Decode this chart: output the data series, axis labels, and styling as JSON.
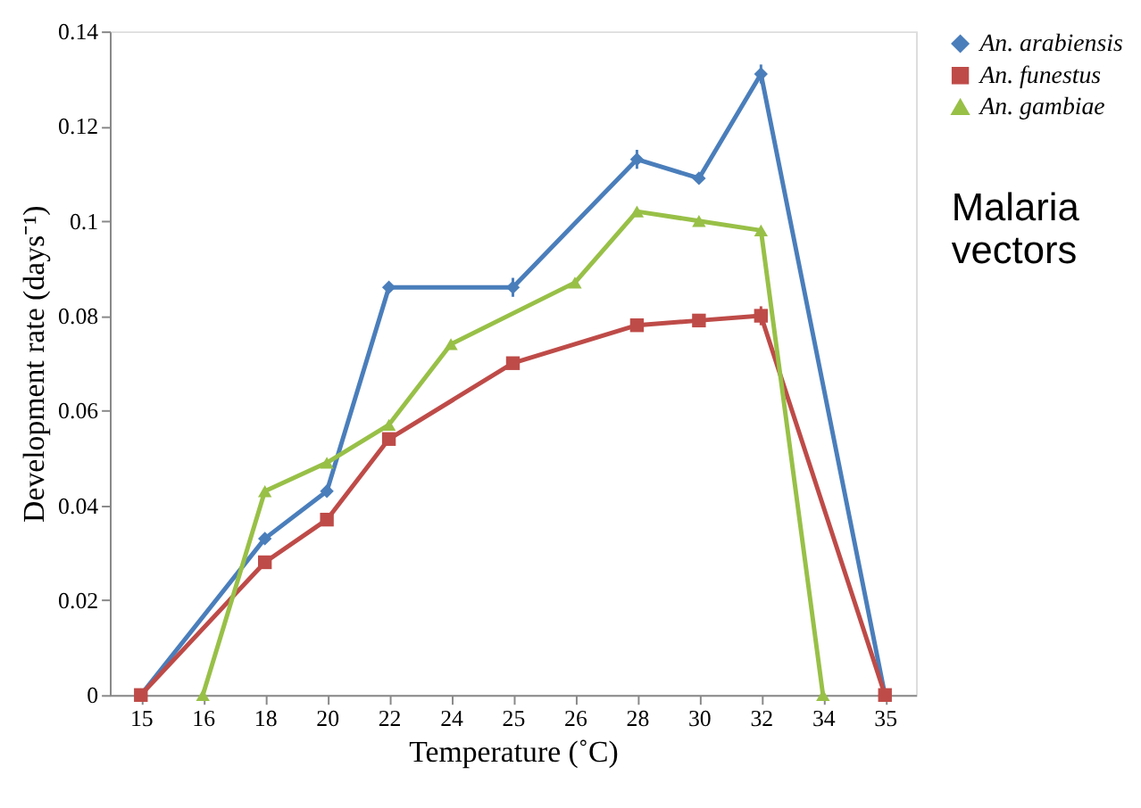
{
  "chart_data": {
    "type": "line",
    "xlabel": "Temperature (˚C)",
    "ylabel": "Development rate (days⁻¹)",
    "categories": [
      "15",
      "16",
      "18",
      "20",
      "22",
      "24",
      "25",
      "26",
      "28",
      "30",
      "32",
      "34",
      "35"
    ],
    "series": [
      {
        "name": "An. arabiensis",
        "color": "#4a7ebb",
        "marker": "diamond",
        "values": [
          0,
          null,
          0.033,
          0.043,
          0.086,
          null,
          0.086,
          null,
          0.113,
          0.109,
          0.131,
          null,
          0
        ],
        "errors": [
          null,
          null,
          null,
          null,
          null,
          null,
          0.002,
          null,
          0.002,
          null,
          0.002,
          null,
          null
        ]
      },
      {
        "name": "An. funestus",
        "color": "#be4b48",
        "marker": "square",
        "values": [
          0,
          null,
          0.028,
          0.037,
          0.054,
          null,
          0.07,
          null,
          0.078,
          0.079,
          0.08,
          null,
          0
        ],
        "errors": [
          null,
          null,
          null,
          null,
          null,
          null,
          null,
          null,
          null,
          null,
          0.002,
          null,
          null
        ]
      },
      {
        "name": "An. gambiae",
        "color": "#98c047",
        "marker": "triangle",
        "values": [
          null,
          0,
          0.043,
          0.049,
          0.057,
          0.074,
          null,
          0.087,
          0.102,
          0.1,
          0.098,
          0,
          null
        ]
      }
    ],
    "ylim": [
      0,
      0.14
    ],
    "yticks": [
      0,
      {
        "value": 0.02,
        "label": "0.02"
      },
      {
        "value": 0.04,
        "label": "0.04"
      },
      {
        "value": 0.06,
        "label": "0.06"
      },
      {
        "value": 0.08,
        "label": "0.08"
      },
      {
        "value": 0.1,
        "label": "0.1"
      },
      {
        "value": 0.12,
        "label": "0.12"
      },
      {
        "value": 0.14,
        "label": "0.14"
      }
    ],
    "legend": "right",
    "grid": false,
    "line_style": "solid",
    "annotations": [
      "Malaria vectors"
    ]
  }
}
